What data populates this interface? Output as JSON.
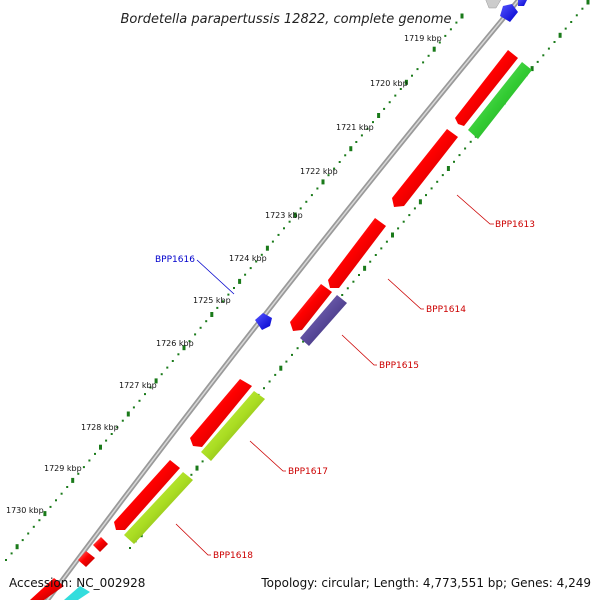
{
  "title": "Bordetella parapertussis 12822, complete genome",
  "accession": "Accession: NC_002928",
  "summary": "Topology: circular; Length: 4,773,551 bp; Genes: 4,249",
  "ticks": [
    "1719 kbp",
    "1720 kbp",
    "1721 kbp",
    "1722 kbp",
    "1723 kbp",
    "1724 kbp",
    "1725 kbp",
    "1726 kbp",
    "1727 kbp",
    "1728 kbp",
    "1729 kbp",
    "1730 kbp"
  ],
  "gene_labels": [
    "BPP1613",
    "BPP1614",
    "BPP1615",
    "BPP1616",
    "BPP1617",
    "BPP1618"
  ],
  "colors": {
    "backbone": "#8a8a8a",
    "forward_gene": "#ff0000",
    "reverse_gene": "#ff0000",
    "green_feature": "#33cc33",
    "lime_feature": "#aadd22",
    "purple_feature": "#5a4a9a",
    "small_feature": "#0000ff",
    "label_red": "#cc0000",
    "label_blue": "#0000cc",
    "tick_green": "#1a7a1a"
  }
}
